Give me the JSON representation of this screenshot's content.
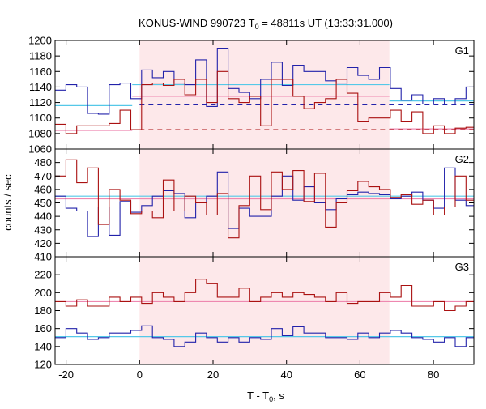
{
  "title": {
    "prefix": "KONUS-WIND 990723 T",
    "sub": "0",
    "suffix": " = 48811s UT (13:33:31.000)"
  },
  "chart_data": {
    "type": "line",
    "xlabel": {
      "main": "T - T",
      "sub": "0",
      "suffix": ", s"
    },
    "ylabel": "counts / sec",
    "xlim": [
      -23,
      91
    ],
    "xticks": [
      -20,
      0,
      20,
      40,
      60,
      80
    ],
    "bin_width": 2.944,
    "x_start": -23,
    "highlight_interval": [
      0,
      68
    ],
    "colors": {
      "blue": "#2222aa",
      "red": "#aa1111",
      "lightblue": "#55c8e8",
      "pink": "#ee88b0",
      "highlight": "#fde8ea"
    },
    "panels": [
      {
        "name": "G1",
        "ylim": [
          1060,
          1200
        ],
        "yticks": [
          1060,
          1080,
          1100,
          1120,
          1140,
          1160,
          1180,
          1200
        ],
        "series": [
          {
            "color": "blue",
            "values": [
              1136,
              1143,
              1140,
              1106,
              1105,
              1143,
              1145,
              1125,
              1162,
              1152,
              1160,
              1145,
              1143,
              1175,
              1115,
              1190,
              1138,
              1133,
              1125,
              1150,
              1172,
              1142,
              1168,
              1160,
              1160,
              1148,
              1145,
              1165,
              1155,
              1150,
              1165,
              1138,
              1123,
              1130,
              1118,
              1125,
              1118,
              1125,
              1140
            ]
          },
          {
            "color": "red",
            "values": [
              1092,
              1080,
              1090,
              1090,
              1090,
              1093,
              1110,
              1085,
              1143,
              1145,
              1142,
              1150,
              1130,
              1150,
              1120,
              1160,
              1125,
              1120,
              1128,
              1090,
              1150,
              1150,
              1128,
              1112,
              1120,
              1125,
              1150,
              1132,
              1095,
              1100,
              1100,
              1110,
              1095,
              1108,
              1080,
              1090,
              1080,
              1087,
              1088
            ]
          }
        ],
        "fits": [
          {
            "color": "lightblue",
            "style": "solid",
            "segments": [
              [
                -23,
                -2,
                1116
              ],
              [
                -2,
                68,
                1143
              ],
              [
                68,
                91,
                1122
              ]
            ]
          },
          {
            "color": "pink",
            "style": "solid",
            "segments": [
              [
                -23,
                -2,
                1084
              ],
              [
                -2,
                68,
                1128
              ],
              [
                68,
                91,
                1086
              ]
            ]
          },
          {
            "color": "blue",
            "style": "dashed",
            "segments": [
              [
                0,
                91,
                1117
              ]
            ]
          },
          {
            "color": "red",
            "style": "dashed",
            "segments": [
              [
                0,
                91,
                1085
              ]
            ]
          }
        ]
      },
      {
        "name": "G2",
        "ylim": [
          410,
          490
        ],
        "yticks": [
          410,
          420,
          430,
          440,
          450,
          460,
          470,
          480
        ],
        "series": [
          {
            "color": "blue",
            "values": [
              455,
              446,
              444,
              425,
              447,
              426,
              451,
              443,
              448,
              455,
              459,
              457,
              439,
              450,
              455,
              473,
              431,
              446,
              440,
              440,
              455,
              470,
              452,
              462,
              450,
              445,
              453,
              456,
              458,
              457,
              456,
              453,
              455,
              458,
              452,
              446,
              476,
              452,
              448
            ]
          },
          {
            "color": "red",
            "values": [
              470,
              482,
              465,
              476,
              434,
              460,
              452,
              442,
              444,
              439,
              467,
              444,
              455,
              450,
              441,
              457,
              424,
              448,
              470,
              445,
              473,
              460,
              474,
              451,
              472,
              432,
              450,
              459,
              466,
              462,
              460,
              454,
              456,
              449,
              452,
              441,
              447,
              470,
              452
            ]
          }
        ],
        "fits": [
          {
            "color": "lightblue",
            "style": "solid",
            "segments": [
              [
                -23,
                91,
                455
              ]
            ]
          },
          {
            "color": "pink",
            "style": "solid",
            "segments": [
              [
                -23,
                91,
                453
              ]
            ]
          }
        ]
      },
      {
        "name": "G3",
        "ylim": [
          120,
          240
        ],
        "yticks": [
          120,
          140,
          160,
          180,
          200,
          220
        ],
        "series": [
          {
            "color": "blue",
            "values": [
              150,
              160,
              155,
              148,
              150,
              155,
              155,
              158,
              163,
              150,
              148,
              140,
              145,
              155,
              150,
              145,
              150,
              145,
              150,
              148,
              160,
              152,
              162,
              155,
              155,
              150,
              150,
              148,
              155,
              150,
              155,
              158,
              155,
              150,
              148,
              145,
              150,
              140,
              150
            ]
          },
          {
            "color": "red",
            "values": [
              190,
              185,
              192,
              185,
              185,
              195,
              190,
              195,
              188,
              200,
              195,
              190,
              200,
              215,
              210,
              195,
              195,
              205,
              190,
              195,
              200,
              195,
              200,
              198,
              195,
              190,
              200,
              188,
              190,
              190,
              200,
              195,
              208,
              185,
              185,
              190,
              180,
              185,
              190
            ]
          }
        ],
        "fits": [
          {
            "color": "lightblue",
            "style": "solid",
            "segments": [
              [
                -23,
                91,
                151
              ]
            ]
          },
          {
            "color": "pink",
            "style": "solid",
            "segments": [
              [
                -23,
                91,
                190
              ]
            ]
          }
        ]
      }
    ]
  }
}
